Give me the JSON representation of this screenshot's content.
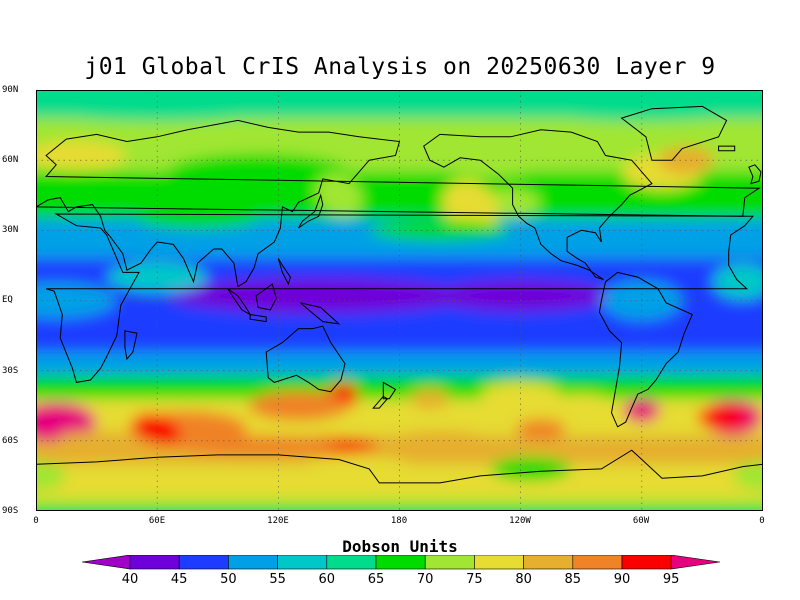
{
  "title": "j01 Global CrIS Analysis on 20250630 Layer 9",
  "latitude_labels": [
    "90N",
    "60N",
    "30N",
    "EQ",
    "30S",
    "60S",
    "90S"
  ],
  "longitude_labels": [
    "0",
    "60E",
    "120E",
    "180",
    "120W",
    "60W",
    "0"
  ],
  "colorbar": {
    "title": "Dobson Units",
    "ticks": [
      "40",
      "45",
      "50",
      "55",
      "60",
      "65",
      "70",
      "75",
      "80",
      "85",
      "90",
      "95"
    ],
    "colors": [
      "#a000c8",
      "#6e00dc",
      "#1e3cff",
      "#00a0e6",
      "#00c8c8",
      "#00dc8c",
      "#00dc00",
      "#a0e632",
      "#e6dc32",
      "#e6af2d",
      "#f08228",
      "#fa0000",
      "#e6007e"
    ]
  },
  "colors": {
    "coastline": "#000000",
    "grid": "#555555",
    "frame": "#000000",
    "background": "#ffffff"
  }
}
